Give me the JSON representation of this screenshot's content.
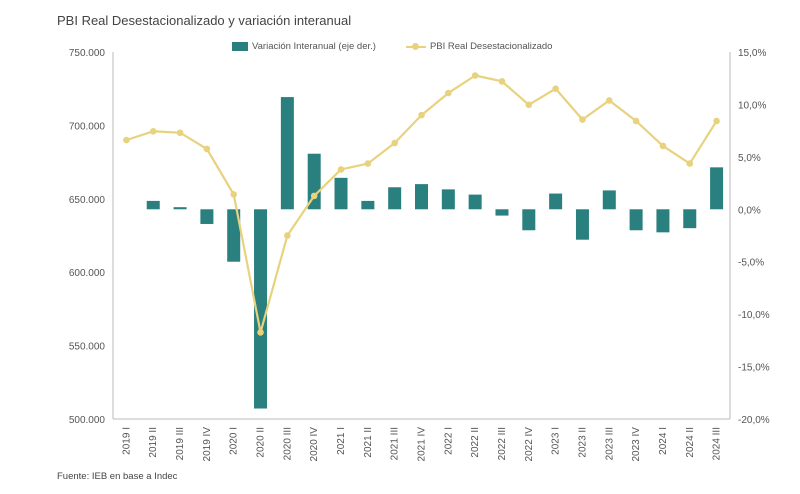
{
  "chart_data": {
    "type": "bar+line",
    "title": "PBI Real Desestacionalizado y variación interanual",
    "source": "Fuente: IEB en base a Indec",
    "categories": [
      "2019 I",
      "2019 II",
      "2019 III",
      "2019 IV",
      "2020 I",
      "2020 II",
      "2020 III",
      "2020 IV",
      "2021 I",
      "2021 II",
      "2021 III",
      "2021 IV",
      "2022 I",
      "2022 II",
      "2022 III",
      "2022 IV",
      "2023 I",
      "2023 II",
      "2023 III",
      "2023 IV",
      "2024 I",
      "2024 II",
      "2024 III"
    ],
    "series": [
      {
        "name": "Variación Interanual (eje der.)",
        "type": "bar",
        "axis": "right",
        "color": "#2a7f7f",
        "values": [
          0.0,
          0.8,
          0.2,
          -1.4,
          -5.0,
          -19.0,
          10.7,
          5.3,
          3.0,
          0.8,
          2.1,
          2.4,
          1.9,
          1.4,
          -0.6,
          -2.0,
          1.5,
          -2.9,
          1.8,
          -2.0,
          -2.2,
          -1.8,
          4.0
        ]
      },
      {
        "name": "PBI Real Desestacionalizado",
        "type": "line",
        "axis": "left",
        "color": "#e8d27e",
        "values": [
          690000,
          696000,
          695000,
          684000,
          653000,
          559000,
          625000,
          652000,
          670000,
          674000,
          688000,
          707000,
          722000,
          734000,
          730000,
          714000,
          725000,
          704000,
          717000,
          703000,
          686000,
          674000,
          703000
        ]
      }
    ],
    "y_left": {
      "min": 500000,
      "max": 750000,
      "ticks": [
        "500.000",
        "550.000",
        "600.000",
        "650.000",
        "700.000",
        "750.000"
      ]
    },
    "y_right": {
      "min": -20,
      "max": 15,
      "ticks": [
        "-20,0%",
        "-15,0%",
        "-10,0%",
        "-5,0%",
        "0,0%",
        "5,0%",
        "10,0%",
        "15,0%"
      ]
    },
    "legend_position": "top-center"
  }
}
